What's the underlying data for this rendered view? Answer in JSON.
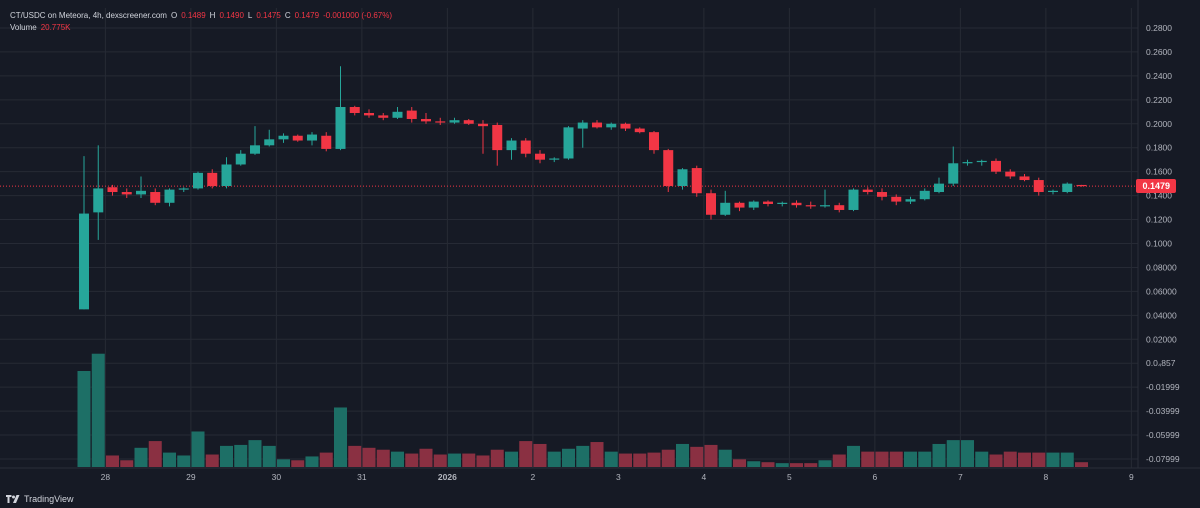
{
  "header": {
    "symbol": "CT/USDC on Meteora, 4h, dexscreener.com",
    "o_label": "O",
    "o_value": "0.1489",
    "h_label": "H",
    "h_value": "0.1490",
    "l_label": "L",
    "l_value": "0.1475",
    "c_label": "C",
    "c_value": "0.1479",
    "change": "-0.001000 (-0.67%)",
    "volume_label": "Volume",
    "volume_value": "20.775K"
  },
  "current_price_tag": "0.1479",
  "branding": "TradingView",
  "colors": {
    "background": "#161a25",
    "grid": "#262a35",
    "up": "#26a69a",
    "down": "#f23645",
    "up_volume": "#1d6f66",
    "down_volume": "#8a3042",
    "axis_text": "#b2b5be"
  },
  "chart_data": {
    "type": "candlestick",
    "title": "CT/USDC on Meteora, 4h",
    "y_axis_ticks": [
      "0.2800",
      "0.2600",
      "0.2400",
      "0.2200",
      "0.2000",
      "0.1800",
      "0.1600",
      "0.1400",
      "0.1200",
      "0.1000",
      "0.08000",
      "0.06000",
      "0.04000",
      "0.02000",
      "0.0₄857",
      "-0.01999",
      "-0.03999",
      "-0.05999",
      "-0.07999"
    ],
    "ylim": [
      -0.085,
      0.285
    ],
    "x_axis_ticks": [
      {
        "label": "28",
        "index": 1.5
      },
      {
        "label": "29",
        "index": 7.5
      },
      {
        "label": "30",
        "index": 13.5
      },
      {
        "label": "31",
        "index": 19.5
      },
      {
        "label": "2026",
        "index": 25.5
      },
      {
        "label": "2",
        "index": 31.5
      },
      {
        "label": "3",
        "index": 37.5
      },
      {
        "label": "4",
        "index": 43.5
      },
      {
        "label": "5",
        "index": 49.5
      },
      {
        "label": "6",
        "index": 55.5
      },
      {
        "label": "7",
        "index": 61.5
      },
      {
        "label": "8",
        "index": 67.5
      },
      {
        "label": "9",
        "index": 73.5
      }
    ],
    "current_price": 0.1479,
    "candles": [
      {
        "o": 0.045,
        "h": 0.173,
        "l": 0.045,
        "c": 0.125,
        "v": 1.0
      },
      {
        "o": 0.126,
        "h": 0.182,
        "l": 0.103,
        "c": 0.146,
        "v": 1.18
      },
      {
        "o": 0.147,
        "h": 0.149,
        "l": 0.14,
        "c": 0.143,
        "v": 0.12
      },
      {
        "o": 0.143,
        "h": 0.146,
        "l": 0.138,
        "c": 0.141,
        "v": 0.07
      },
      {
        "o": 0.141,
        "h": 0.156,
        "l": 0.138,
        "c": 0.144,
        "v": 0.2
      },
      {
        "o": 0.143,
        "h": 0.146,
        "l": 0.132,
        "c": 0.134,
        "v": 0.27
      },
      {
        "o": 0.134,
        "h": 0.146,
        "l": 0.131,
        "c": 0.145,
        "v": 0.15
      },
      {
        "o": 0.145,
        "h": 0.147,
        "l": 0.143,
        "c": 0.146,
        "v": 0.12
      },
      {
        "o": 0.146,
        "h": 0.16,
        "l": 0.145,
        "c": 0.159,
        "v": 0.37
      },
      {
        "o": 0.159,
        "h": 0.162,
        "l": 0.146,
        "c": 0.148,
        "v": 0.13
      },
      {
        "o": 0.148,
        "h": 0.172,
        "l": 0.146,
        "c": 0.166,
        "v": 0.22
      },
      {
        "o": 0.166,
        "h": 0.178,
        "l": 0.165,
        "c": 0.175,
        "v": 0.23
      },
      {
        "o": 0.175,
        "h": 0.198,
        "l": 0.174,
        "c": 0.182,
        "v": 0.28
      },
      {
        "o": 0.182,
        "h": 0.195,
        "l": 0.181,
        "c": 0.187,
        "v": 0.22
      },
      {
        "o": 0.187,
        "h": 0.192,
        "l": 0.184,
        "c": 0.19,
        "v": 0.08
      },
      {
        "o": 0.19,
        "h": 0.191,
        "l": 0.185,
        "c": 0.186,
        "v": 0.07
      },
      {
        "o": 0.186,
        "h": 0.193,
        "l": 0.182,
        "c": 0.191,
        "v": 0.11
      },
      {
        "o": 0.19,
        "h": 0.193,
        "l": 0.177,
        "c": 0.179,
        "v": 0.15
      },
      {
        "o": 0.179,
        "h": 0.248,
        "l": 0.178,
        "c": 0.214,
        "v": 0.62
      },
      {
        "o": 0.214,
        "h": 0.215,
        "l": 0.207,
        "c": 0.209,
        "v": 0.22
      },
      {
        "o": 0.209,
        "h": 0.212,
        "l": 0.205,
        "c": 0.207,
        "v": 0.2
      },
      {
        "o": 0.207,
        "h": 0.209,
        "l": 0.203,
        "c": 0.205,
        "v": 0.18
      },
      {
        "o": 0.205,
        "h": 0.214,
        "l": 0.204,
        "c": 0.21,
        "v": 0.16
      },
      {
        "o": 0.211,
        "h": 0.214,
        "l": 0.201,
        "c": 0.204,
        "v": 0.14
      },
      {
        "o": 0.204,
        "h": 0.209,
        "l": 0.2,
        "c": 0.202,
        "v": 0.19
      },
      {
        "o": 0.202,
        "h": 0.205,
        "l": 0.199,
        "c": 0.201,
        "v": 0.13
      },
      {
        "o": 0.201,
        "h": 0.205,
        "l": 0.2,
        "c": 0.203,
        "v": 0.14
      },
      {
        "o": 0.203,
        "h": 0.204,
        "l": 0.199,
        "c": 0.2,
        "v": 0.14
      },
      {
        "o": 0.2,
        "h": 0.203,
        "l": 0.175,
        "c": 0.198,
        "v": 0.12
      },
      {
        "o": 0.199,
        "h": 0.201,
        "l": 0.165,
        "c": 0.178,
        "v": 0.18
      },
      {
        "o": 0.178,
        "h": 0.188,
        "l": 0.17,
        "c": 0.186,
        "v": 0.16
      },
      {
        "o": 0.186,
        "h": 0.188,
        "l": 0.172,
        "c": 0.175,
        "v": 0.27
      },
      {
        "o": 0.175,
        "h": 0.178,
        "l": 0.167,
        "c": 0.17,
        "v": 0.24
      },
      {
        "o": 0.17,
        "h": 0.172,
        "l": 0.168,
        "c": 0.171,
        "v": 0.16
      },
      {
        "o": 0.171,
        "h": 0.198,
        "l": 0.17,
        "c": 0.197,
        "v": 0.19
      },
      {
        "o": 0.196,
        "h": 0.203,
        "l": 0.18,
        "c": 0.201,
        "v": 0.22
      },
      {
        "o": 0.201,
        "h": 0.203,
        "l": 0.196,
        "c": 0.197,
        "v": 0.26
      },
      {
        "o": 0.197,
        "h": 0.201,
        "l": 0.195,
        "c": 0.2,
        "v": 0.16
      },
      {
        "o": 0.2,
        "h": 0.201,
        "l": 0.194,
        "c": 0.196,
        "v": 0.14
      },
      {
        "o": 0.196,
        "h": 0.197,
        "l": 0.192,
        "c": 0.193,
        "v": 0.14
      },
      {
        "o": 0.193,
        "h": 0.194,
        "l": 0.175,
        "c": 0.178,
        "v": 0.15
      },
      {
        "o": 0.178,
        "h": 0.179,
        "l": 0.143,
        "c": 0.148,
        "v": 0.18
      },
      {
        "o": 0.148,
        "h": 0.163,
        "l": 0.145,
        "c": 0.162,
        "v": 0.24
      },
      {
        "o": 0.163,
        "h": 0.165,
        "l": 0.139,
        "c": 0.142,
        "v": 0.21
      },
      {
        "o": 0.142,
        "h": 0.145,
        "l": 0.12,
        "c": 0.124,
        "v": 0.23
      },
      {
        "o": 0.124,
        "h": 0.144,
        "l": 0.123,
        "c": 0.134,
        "v": 0.18
      },
      {
        "o": 0.134,
        "h": 0.135,
        "l": 0.127,
        "c": 0.13,
        "v": 0.08
      },
      {
        "o": 0.13,
        "h": 0.136,
        "l": 0.128,
        "c": 0.135,
        "v": 0.06
      },
      {
        "o": 0.135,
        "h": 0.136,
        "l": 0.131,
        "c": 0.133,
        "v": 0.05
      },
      {
        "o": 0.133,
        "h": 0.135,
        "l": 0.131,
        "c": 0.134,
        "v": 0.04
      },
      {
        "o": 0.134,
        "h": 0.136,
        "l": 0.13,
        "c": 0.132,
        "v": 0.04
      },
      {
        "o": 0.132,
        "h": 0.135,
        "l": 0.129,
        "c": 0.131,
        "v": 0.04
      },
      {
        "o": 0.131,
        "h": 0.145,
        "l": 0.13,
        "c": 0.132,
        "v": 0.07
      },
      {
        "o": 0.132,
        "h": 0.134,
        "l": 0.126,
        "c": 0.128,
        "v": 0.13
      },
      {
        "o": 0.128,
        "h": 0.146,
        "l": 0.127,
        "c": 0.145,
        "v": 0.22
      },
      {
        "o": 0.145,
        "h": 0.147,
        "l": 0.141,
        "c": 0.143,
        "v": 0.16
      },
      {
        "o": 0.143,
        "h": 0.146,
        "l": 0.136,
        "c": 0.139,
        "v": 0.16
      },
      {
        "o": 0.139,
        "h": 0.141,
        "l": 0.132,
        "c": 0.135,
        "v": 0.16
      },
      {
        "o": 0.135,
        "h": 0.139,
        "l": 0.133,
        "c": 0.137,
        "v": 0.16
      },
      {
        "o": 0.137,
        "h": 0.146,
        "l": 0.136,
        "c": 0.144,
        "v": 0.16
      },
      {
        "o": 0.143,
        "h": 0.155,
        "l": 0.142,
        "c": 0.15,
        "v": 0.24
      },
      {
        "o": 0.15,
        "h": 0.181,
        "l": 0.148,
        "c": 0.167,
        "v": 0.28
      },
      {
        "o": 0.167,
        "h": 0.17,
        "l": 0.165,
        "c": 0.168,
        "v": 0.28
      },
      {
        "o": 0.168,
        "h": 0.17,
        "l": 0.165,
        "c": 0.169,
        "v": 0.16
      },
      {
        "o": 0.169,
        "h": 0.171,
        "l": 0.158,
        "c": 0.16,
        "v": 0.13
      },
      {
        "o": 0.16,
        "h": 0.162,
        "l": 0.154,
        "c": 0.156,
        "v": 0.16
      },
      {
        "o": 0.156,
        "h": 0.158,
        "l": 0.152,
        "c": 0.153,
        "v": 0.15
      },
      {
        "o": 0.153,
        "h": 0.155,
        "l": 0.14,
        "c": 0.143,
        "v": 0.15
      },
      {
        "o": 0.143,
        "h": 0.145,
        "l": 0.141,
        "c": 0.144,
        "v": 0.15
      },
      {
        "o": 0.143,
        "h": 0.151,
        "l": 0.142,
        "c": 0.15,
        "v": 0.15
      },
      {
        "o": 0.1489,
        "h": 0.149,
        "l": 0.1475,
        "c": 0.1479,
        "v": 0.05
      }
    ]
  }
}
